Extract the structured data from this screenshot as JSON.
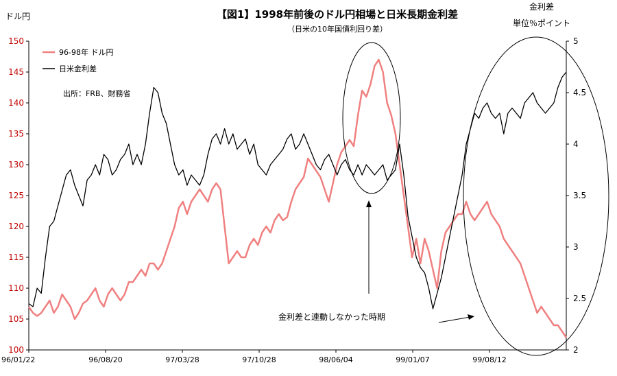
{
  "chart_data": {
    "type": "line",
    "title": "【図1】1998年前後のドル円相場と日米長期金利差",
    "subtitle": "（日米の10年国債利回り差）",
    "left_axis": {
      "unit": "ドル円",
      "ylim": [
        100,
        150
      ],
      "ticks": [
        100,
        105,
        110,
        115,
        120,
        125,
        130,
        135,
        140,
        145,
        150
      ]
    },
    "right_axis": {
      "unit_line1": "金利差",
      "unit_line2": "単位％ポイント",
      "ylim": [
        2,
        5
      ],
      "ticks": [
        "2",
        "2.5",
        "3",
        "3.5",
        "4",
        "4.5",
        "5"
      ]
    },
    "x_axis": {
      "tick_labels": [
        "96/01/22",
        "96/08/20",
        "97/03/28",
        "97/10/28",
        "98/06/04",
        "99/01/07",
        "99/08/12"
      ]
    },
    "source_note": "出所：FRB、財務省",
    "annotation": "金利差と連動しなかった時期",
    "series": [
      {
        "name": "96-98年 ドル円",
        "color": "#f08080",
        "axis": "left",
        "values": [
          107,
          106,
          105.5,
          106,
          107,
          108,
          106,
          107,
          109,
          108,
          107,
          105,
          106,
          107.5,
          108,
          109,
          110,
          108,
          107,
          109,
          110,
          109,
          108,
          109,
          111,
          111,
          112,
          113,
          112,
          114,
          114,
          113,
          114,
          116,
          118,
          120,
          123,
          124,
          122,
          124,
          125,
          126,
          125,
          124,
          126,
          127,
          126,
          120,
          114,
          115,
          116,
          115,
          115,
          117,
          118,
          117,
          119,
          120,
          119,
          121,
          122,
          121,
          121.5,
          124,
          126,
          127,
          128,
          131,
          130,
          129,
          128,
          126,
          124,
          127,
          130,
          132,
          133,
          134,
          133,
          138,
          142,
          141,
          143,
          146,
          147,
          145,
          140,
          138,
          135,
          130,
          125,
          120,
          115,
          118,
          114,
          118,
          116,
          113,
          110,
          116,
          119,
          120,
          121,
          122,
          122,
          124,
          122,
          121,
          122,
          123,
          124,
          122,
          121,
          120,
          118,
          117,
          116,
          115,
          114,
          112,
          110,
          108,
          106,
          107,
          106,
          105,
          104,
          104,
          103,
          102
        ]
      },
      {
        "name": "日米金利差",
        "color": "#000000",
        "axis": "right",
        "values": [
          2.45,
          2.42,
          2.6,
          2.55,
          2.9,
          3.2,
          3.25,
          3.4,
          3.55,
          3.7,
          3.75,
          3.6,
          3.5,
          3.4,
          3.65,
          3.7,
          3.8,
          3.7,
          3.9,
          3.85,
          3.7,
          3.75,
          3.85,
          3.9,
          4.0,
          3.8,
          3.9,
          3.8,
          4.0,
          4.3,
          4.55,
          4.5,
          4.3,
          4.2,
          4.0,
          3.8,
          3.7,
          3.75,
          3.6,
          3.7,
          3.65,
          3.6,
          3.7,
          3.9,
          4.05,
          4.1,
          4.0,
          4.15,
          4.0,
          4.1,
          3.95,
          4.0,
          4.05,
          3.9,
          4.0,
          3.8,
          3.75,
          3.7,
          3.8,
          3.85,
          3.9,
          3.95,
          4.05,
          4.1,
          3.95,
          4.0,
          4.1,
          4.0,
          3.9,
          3.8,
          3.75,
          3.85,
          3.9,
          3.8,
          3.7,
          3.8,
          3.85,
          3.75,
          3.7,
          3.8,
          3.7,
          3.8,
          3.75,
          3.7,
          3.75,
          3.8,
          3.65,
          3.7,
          3.75,
          4.0,
          3.7,
          3.3,
          3.1,
          2.9,
          2.8,
          2.75,
          2.6,
          2.4,
          2.55,
          2.7,
          2.9,
          3.1,
          3.3,
          3.5,
          3.7,
          4.0,
          4.15,
          4.3,
          4.25,
          4.35,
          4.4,
          4.3,
          4.25,
          4.3,
          4.1,
          4.3,
          4.35,
          4.3,
          4.25,
          4.4,
          4.45,
          4.5,
          4.4,
          4.35,
          4.3,
          4.35,
          4.4,
          4.55,
          4.65,
          4.7
        ]
      }
    ]
  }
}
